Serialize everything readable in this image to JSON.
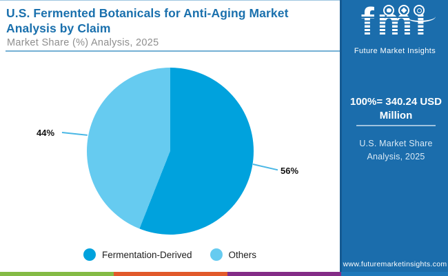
{
  "header": {
    "title": "U.S. Fermented Botanicals for Anti-Aging Market Analysis by Claim",
    "subtitle": "Market Share (%) Analysis, 2025"
  },
  "chart_data": {
    "type": "pie",
    "title": "U.S. Fermented Botanicals for Anti-Aging Market Analysis by Claim",
    "subtitle": "Market Share (%) Analysis, 2025",
    "categories": [
      "Fermentation-Derived",
      "Others"
    ],
    "values": [
      56,
      44
    ],
    "unit": "%",
    "data_labels": [
      "56%",
      "44%"
    ],
    "colors": [
      "#00a2dd",
      "#66cbf0"
    ],
    "legend_position": "bottom",
    "start_angle_deg": 0,
    "total_note": "100% = 340.24 USD Million"
  },
  "sidebar": {
    "logo_text": "fmi",
    "logo_tagline": "Future Market Insights",
    "total_line1": "100%=  340.24 USD",
    "total_line2": "Million",
    "note_line1": "U.S. Market Share",
    "note_line2": "Analysis, 2025",
    "website": "www.futuremarketinsights.com",
    "background_color": "#1b6dac"
  },
  "brand_colors": {
    "title_blue": "#1a70ad",
    "pie_primary": "#00a2dd",
    "pie_secondary": "#66cbf0",
    "subtitle_gray": "#8e8e8e",
    "rule_blue": "#74b0d4"
  },
  "footer_strip": {
    "colors": [
      "#84bb45",
      "#e2592a",
      "#832c87",
      "#1e78ba"
    ]
  }
}
